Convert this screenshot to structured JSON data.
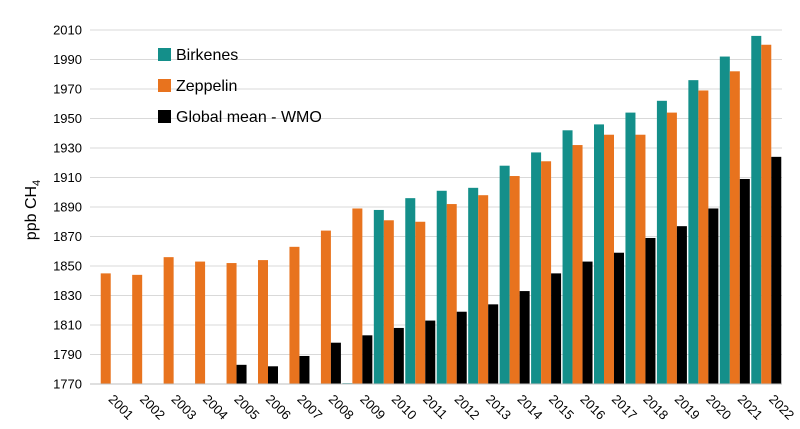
{
  "chart_data": {
    "type": "bar",
    "categories": [
      "2001",
      "2002",
      "2003",
      "2004",
      "2005",
      "2006",
      "2007",
      "2008",
      "2009",
      "2010",
      "2011",
      "2012",
      "2013",
      "2014",
      "2015",
      "2016",
      "2017",
      "2018",
      "2019",
      "2020",
      "2021",
      "2022"
    ],
    "series": [
      {
        "name": "Birkenes",
        "color": "#148f8a",
        "values": [
          null,
          null,
          null,
          null,
          null,
          null,
          null,
          null,
          1770,
          1888,
          1896,
          1901,
          1903,
          1918,
          1927,
          1942,
          1946,
          1954,
          1962,
          1976,
          1992,
          2006
        ]
      },
      {
        "name": "Zeppelin",
        "color": "#e8731e",
        "values": [
          1845,
          1844,
          1856,
          1853,
          1852,
          1854,
          1863,
          1874,
          1889,
          1881,
          1880,
          1892,
          1898,
          1911,
          1921,
          1932,
          1939,
          1939,
          1954,
          1969,
          1982,
          2000
        ]
      },
      {
        "name": "Global mean - WMO",
        "color": "#000000",
        "values": [
          null,
          null,
          null,
          null,
          1783,
          1782,
          1789,
          1798,
          1803,
          1808,
          1813,
          1819,
          1824,
          1833,
          1845,
          1853,
          1859,
          1869,
          1877,
          1889,
          1909,
          1924
        ]
      }
    ],
    "title": "",
    "xlabel": "",
    "ylabel": "ppb CH",
    "ylabel_subscript": "4",
    "ylim": [
      1770,
      2010
    ],
    "yticks": [
      "1770",
      "1790",
      "1810",
      "1830",
      "1850",
      "1870",
      "1890",
      "1910",
      "1930",
      "1950",
      "1970",
      "1990",
      "2010"
    ],
    "grid": true,
    "legend_placement": "top-left"
  }
}
